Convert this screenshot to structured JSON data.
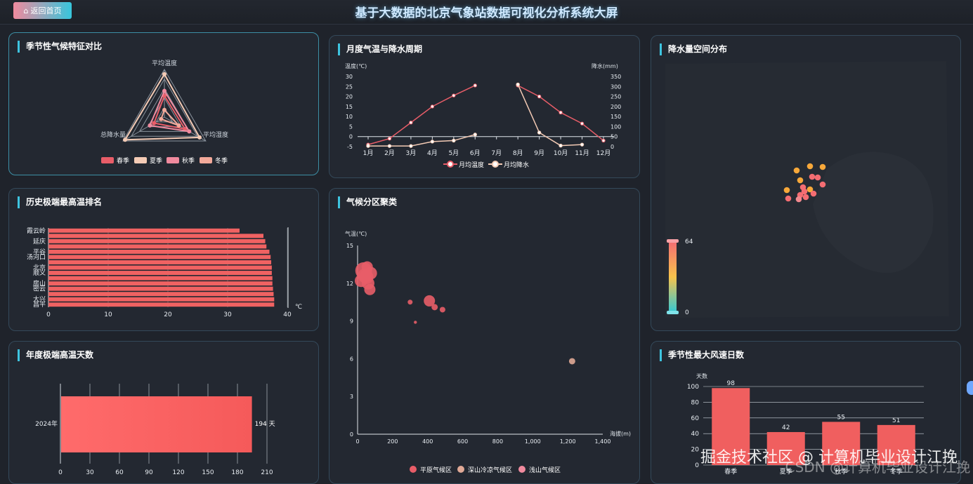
{
  "header": {
    "home_label": "返回首页",
    "title": "基于大数据的北京气象站数据可视化分析系统大屏"
  },
  "panels": {
    "radar": {
      "title": "季节性气候特征对比",
      "indicators": [
        "平均温度",
        "平均湿度",
        "总降水量"
      ],
      "legend": [
        "春季",
        "夏季",
        "秋季",
        "冬季"
      ],
      "colors": [
        "#e85d68",
        "#f4cbb5",
        "#f08a9e",
        "#f2a99a"
      ]
    },
    "monthly": {
      "title": "月度气温与降水周期",
      "y_left_label": "温度(℃)",
      "y_right_label": "降水(mm)",
      "legend": [
        "月均温度",
        "月均降水"
      ]
    },
    "precip_map": {
      "title": "降水量空间分布",
      "visual_max": "64",
      "visual_min": "0"
    },
    "extreme_rank": {
      "title": "历史极端最高温排名",
      "unit": "℃"
    },
    "cluster": {
      "title": "气候分区聚类",
      "y_label": "气温(℃)",
      "x_label": "海拔(m)",
      "legend": [
        "平原气候区",
        "深山冷凉气候区",
        "浅山气候区"
      ]
    },
    "hot_days": {
      "title": "年度极端高温天数",
      "value_label": "194 天"
    },
    "wind": {
      "title": "季节性最大风速日数",
      "y_label": "天数"
    }
  },
  "chart_data": [
    {
      "type": "radar",
      "indicators": [
        "平均温度",
        "平均湿度",
        "总降水量"
      ],
      "series": [
        {
          "name": "春季",
          "values": [
            0.45,
            0.5,
            0.25
          ]
        },
        {
          "name": "夏季",
          "values": [
            0.9,
            0.85,
            0.95
          ]
        },
        {
          "name": "秋季",
          "values": [
            0.55,
            0.6,
            0.35
          ]
        },
        {
          "name": "冬季",
          "values": [
            0.15,
            0.35,
            0.08
          ]
        }
      ]
    },
    {
      "type": "line",
      "categories": [
        "1月",
        "2月",
        "3月",
        "4月",
        "5月",
        "6月",
        "7月",
        "8月",
        "9月",
        "10月",
        "11月",
        "12月"
      ],
      "y_left": {
        "min": -5,
        "max": 30,
        "ticks": [
          "-5",
          "0",
          "5",
          "10",
          "15",
          "20",
          "25",
          "30"
        ]
      },
      "y_right": {
        "min": 0,
        "max": 350,
        "ticks": [
          "0",
          "50",
          "100",
          "150",
          "200",
          "250",
          "300",
          "350"
        ]
      },
      "series": [
        {
          "name": "月均温度",
          "axis": "left",
          "values": [
            -4,
            -1,
            7,
            15,
            20.5,
            25.5,
            null,
            25.5,
            20,
            12,
            6.5,
            -2
          ]
        },
        {
          "name": "月均降水",
          "axis": "right",
          "values": [
            3,
            3,
            3,
            25,
            30,
            60,
            null,
            310,
            70,
            5,
            10,
            null
          ]
        }
      ]
    },
    {
      "type": "bar",
      "orientation": "horizontal",
      "categories": [
        "昌平",
        "大兴",
        "",
        "密云",
        "房山",
        "",
        "顺义",
        "北京",
        "",
        "汤河口",
        "平谷",
        "",
        "延庆",
        "",
        "霞云岭"
      ],
      "tick_labels": [
        "0",
        "10",
        "20",
        "30",
        "40"
      ],
      "xlim": [
        0,
        40
      ],
      "values": [
        37.8,
        37.8,
        37.7,
        37.6,
        37.5,
        37.5,
        37.4,
        37.4,
        37.3,
        37.2,
        37.0,
        36.5,
        36.3,
        36.0,
        32.0
      ]
    },
    {
      "type": "scatter",
      "xlim": [
        0,
        1400
      ],
      "ylim": [
        0,
        15
      ],
      "x_ticks": [
        "0",
        "200",
        "400",
        "600",
        "800",
        "1,000",
        "1,200",
        "1,400"
      ],
      "y_ticks": [
        "0",
        "3",
        "6",
        "9",
        "12",
        "15"
      ],
      "series": [
        {
          "name": "平原气候区",
          "points": [
            [
              20,
              12.2
            ],
            [
              35,
              13.0
            ],
            [
              50,
              12.5
            ],
            [
              60,
              12.0
            ],
            [
              70,
              11.5
            ],
            [
              55,
              13.3
            ],
            [
              75,
              12.8
            ],
            [
              40,
              12.6
            ],
            [
              300,
              10.5
            ],
            [
              330,
              8.9
            ],
            [
              410,
              10.6
            ],
            [
              440,
              10.1
            ],
            [
              485,
              9.9
            ]
          ]
        },
        {
          "name": "深山冷凉气候区",
          "points": [
            [
              1225,
              5.8
            ]
          ]
        },
        {
          "name": "浅山气候区",
          "points": []
        }
      ]
    },
    {
      "type": "bar",
      "orientation": "horizontal",
      "categories": [
        "2024年"
      ],
      "values": [
        194
      ],
      "tick_labels": [
        "0",
        "30",
        "60",
        "90",
        "120",
        "150",
        "180",
        "210"
      ],
      "xlim": [
        0,
        210
      ]
    },
    {
      "type": "bar",
      "categories": [
        "春季",
        "夏季",
        "秋季",
        "冬季"
      ],
      "values": [
        98,
        42,
        55,
        51
      ],
      "ylim": [
        0,
        100
      ],
      "y_ticks": [
        "0",
        "20",
        "40",
        "60",
        "80",
        "100"
      ]
    },
    {
      "type": "scatter",
      "visual_map": {
        "min": 0,
        "max": 64
      },
      "points_desc": "stations clustered over Beijing area"
    }
  ],
  "watermark": {
    "line1": "掘金技术社区 @ 计算机毕业设计江挽",
    "line2": "CSDN @计算机毕业设计江挽"
  }
}
